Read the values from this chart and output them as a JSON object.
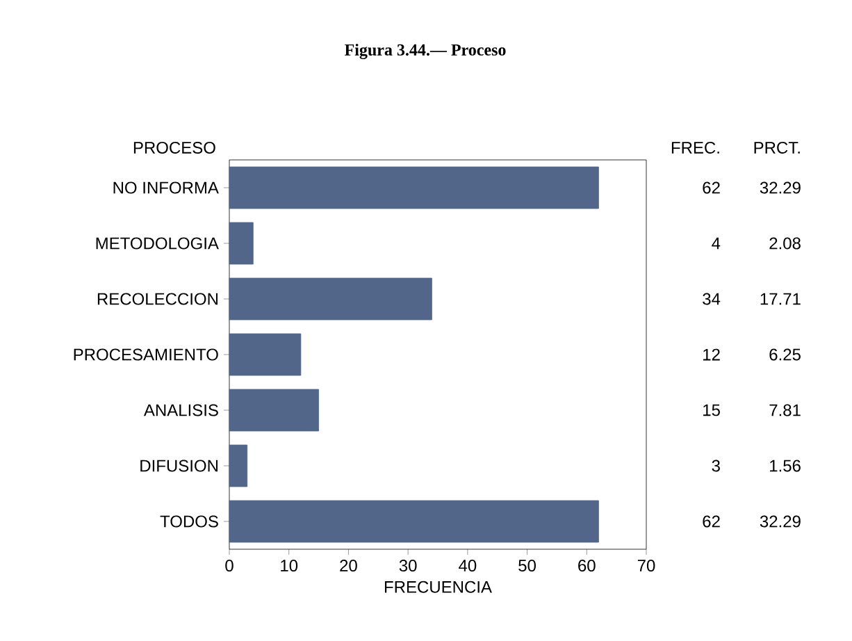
{
  "chart_data": {
    "type": "bar",
    "orientation": "horizontal",
    "title": "Figura 3.44.— Proceso",
    "ylabel": "PROCESO",
    "xlabel": "FRECUENCIA",
    "categories": [
      "NO INFORMA",
      "METODOLOGIA",
      "RECOLECCION",
      "PROCESAMIENTO",
      "ANALISIS",
      "DIFUSION",
      "TODOS"
    ],
    "values": [
      62,
      4,
      34,
      12,
      15,
      3,
      62
    ],
    "color": "#52668a",
    "data_labels": true,
    "xlim": [
      0,
      70
    ],
    "xticks": [
      0,
      10,
      20,
      30,
      40,
      50,
      60,
      70
    ],
    "grid": false,
    "annotations": [
      "FREC.",
      "PRCT.",
      "32.29",
      "2.08",
      "17.71",
      "6.25",
      "7.81",
      "1.56",
      "32.29"
    ]
  }
}
